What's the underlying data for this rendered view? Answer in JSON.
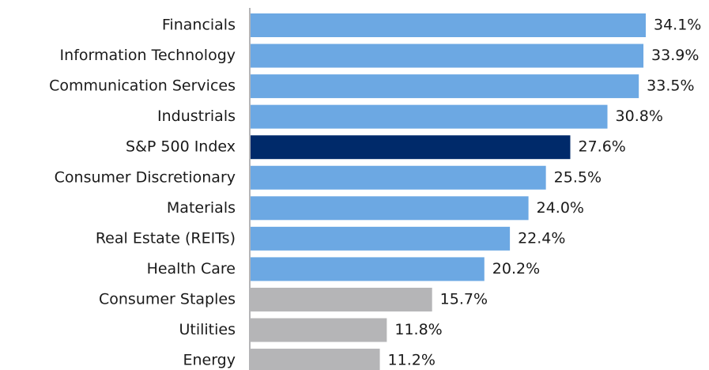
{
  "chart_data": {
    "type": "barh",
    "categories": [
      "Financials",
      "Information Technology",
      "Communication Services",
      "Industrials",
      "S&P 500 Index",
      "Consumer Discretionary",
      "Materials",
      "Real Estate (REITs)",
      "Health Care",
      "Consumer Staples",
      "Utilities",
      "Energy"
    ],
    "values": [
      34.1,
      33.9,
      33.5,
      30.8,
      27.6,
      25.5,
      24.0,
      22.4,
      20.2,
      15.7,
      11.8,
      11.2
    ],
    "value_labels": [
      "34.1%",
      "33.9%",
      "33.5%",
      "30.8%",
      "27.6%",
      "25.5%",
      "24.0%",
      "22.4%",
      "20.2%",
      "15.7%",
      "11.8%",
      "11.2%"
    ],
    "colors": [
      "#6ca8e3",
      "#6ca8e3",
      "#6ca8e3",
      "#6ca8e3",
      "#002a6a",
      "#6ca8e3",
      "#6ca8e3",
      "#6ca8e3",
      "#6ca8e3",
      "#b5b5b7",
      "#b5b5b7",
      "#b5b5b7"
    ]
  }
}
